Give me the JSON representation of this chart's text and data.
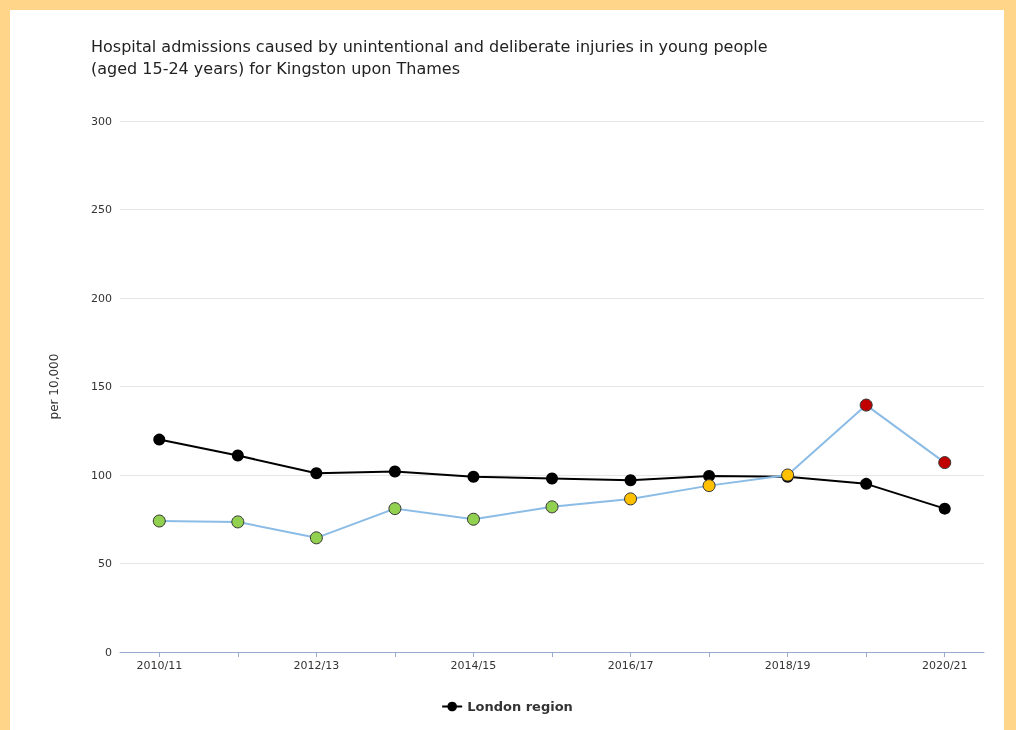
{
  "chart_data": {
    "type": "line",
    "title": "Hospital admissions caused by unintentional and deliberate injuries in young people\n(aged 15-24 years) for Kingston upon Thames",
    "ylabel": "per 10,000",
    "categories": [
      "2010/11",
      null,
      "2012/13",
      null,
      "2014/15",
      null,
      "2016/17",
      null,
      "2018/19",
      null,
      "2020/21"
    ],
    "series": [
      {
        "color": "#8bbce6",
        "colors": [
          "#92d050",
          "#92d050",
          "#92d050",
          "#92d050",
          "#92d050",
          "#92d050",
          "#ffc000",
          "#ffc000",
          "#ffc000",
          "#c00000",
          "#c00000"
        ],
        "values": [
          74,
          73.5,
          64.5,
          81,
          75,
          82,
          86.5,
          94,
          100,
          139.5,
          107
        ]
      },
      {
        "name": "London region",
        "color": "#000000",
        "values": [
          120,
          111,
          101,
          102,
          99,
          98,
          97,
          99.5,
          99,
          95,
          81
        ]
      }
    ],
    "ylim": [
      0,
      300
    ],
    "yticks": [
      0,
      50,
      100,
      150,
      200,
      250,
      300
    ],
    "grid": "y",
    "legend": "bottom",
    "marker": "circle",
    "line_style": "solid"
  }
}
